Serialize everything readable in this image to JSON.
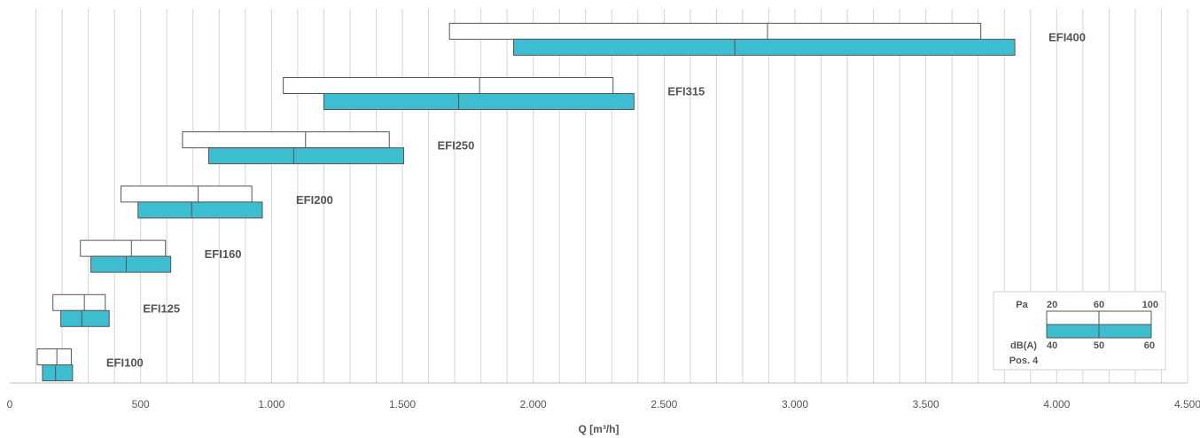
{
  "colors": {
    "pressure_bar_fill": "#ffffff",
    "sound_bar_fill": "#3dbdd0",
    "bar_stroke": "#555555",
    "grid": "#d4d4d4",
    "text": "#555555"
  },
  "chart_data": {
    "type": "bar",
    "orientation": "horizontal-range",
    "title": "",
    "xlabel": "Q [m³/h]",
    "ylabel": "",
    "xlim": [
      0,
      4500
    ],
    "x_ticks": [
      0,
      500,
      1000,
      1500,
      2000,
      2500,
      3000,
      3500,
      4000,
      4500
    ],
    "x_tick_labels": [
      "0",
      "500",
      "1.000",
      "1.500",
      "2.000",
      "2.500",
      "3.000",
      "3.500",
      "4.000",
      "4.500"
    ],
    "grid": "vertical, every 100",
    "models": [
      {
        "name": "EFI100",
        "pa": [
          105,
          180,
          235
        ],
        "dba": [
          125,
          175,
          240
        ]
      },
      {
        "name": "EFI125",
        "pa": [
          165,
          285,
          365
        ],
        "dba": [
          195,
          275,
          380
        ]
      },
      {
        "name": "EFI160",
        "pa": [
          270,
          465,
          595
        ],
        "dba": [
          310,
          445,
          615
        ]
      },
      {
        "name": "EFI200",
        "pa": [
          425,
          720,
          925
        ],
        "dba": [
          490,
          695,
          965
        ]
      },
      {
        "name": "EFI250",
        "pa": [
          660,
          1130,
          1450
        ],
        "dba": [
          760,
          1085,
          1505
        ]
      },
      {
        "name": "EFI315",
        "pa": [
          1045,
          1795,
          2305
        ],
        "dba": [
          1200,
          1715,
          2385
        ]
      },
      {
        "name": "EFI400",
        "pa": [
          1680,
          2895,
          3710
        ],
        "dba": [
          1925,
          2770,
          3840
        ]
      }
    ],
    "legend": {
      "position": "bottom-right",
      "pa_label": "Pa",
      "pa_values": [
        "20",
        "60",
        "100"
      ],
      "dba_label": "dB(A)",
      "dba_values": [
        "40",
        "50",
        "60"
      ],
      "note": "Pos. 4"
    }
  }
}
